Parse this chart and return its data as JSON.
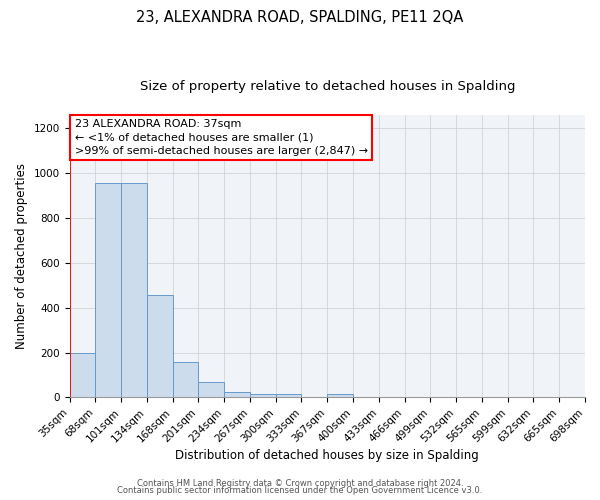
{
  "title": "23, ALEXANDRA ROAD, SPALDING, PE11 2QA",
  "subtitle": "Size of property relative to detached houses in Spalding",
  "xlabel": "Distribution of detached houses by size in Spalding",
  "ylabel": "Number of detached properties",
  "bar_color": "#cddcec",
  "bar_edge_color": "#6699cc",
  "bin_labels": [
    "35sqm",
    "68sqm",
    "101sqm",
    "134sqm",
    "168sqm",
    "201sqm",
    "234sqm",
    "267sqm",
    "300sqm",
    "333sqm",
    "367sqm",
    "400sqm",
    "433sqm",
    "466sqm",
    "499sqm",
    "532sqm",
    "565sqm",
    "599sqm",
    "632sqm",
    "665sqm",
    "698sqm"
  ],
  "bar_values": [
    200,
    955,
    955,
    455,
    160,
    70,
    22,
    17,
    16,
    0,
    13,
    0,
    0,
    0,
    0,
    0,
    0,
    0,
    0,
    0
  ],
  "ylim": [
    0,
    1260
  ],
  "yticks": [
    0,
    200,
    400,
    600,
    800,
    1000,
    1200
  ],
  "annotation_line1": "23 ALEXANDRA ROAD: 37sqm",
  "annotation_line2": "← <1% of detached houses are smaller (1)",
  "annotation_line3": ">99% of semi-detached houses are larger (2,847) →",
  "grid_color": "#cccccc",
  "footer_line1": "Contains HM Land Registry data © Crown copyright and database right 2024.",
  "footer_line2": "Contains public sector information licensed under the Open Government Licence v3.0.",
  "title_fontsize": 10.5,
  "subtitle_fontsize": 9.5,
  "axis_label_fontsize": 8.5,
  "tick_fontsize": 7.5,
  "annotation_fontsize": 8,
  "footer_fontsize": 6
}
